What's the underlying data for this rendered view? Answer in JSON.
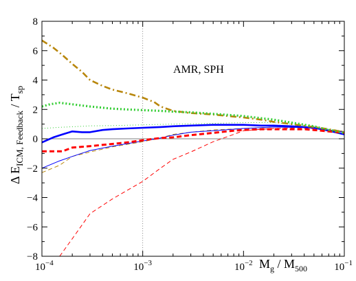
{
  "chart_data": {
    "type": "line",
    "xscale": "log",
    "xlim": [
      0.0001,
      0.1
    ],
    "ylim": [
      -8,
      8
    ],
    "x_ticks": [
      0.0001,
      0.001,
      0.01,
      0.1
    ],
    "x_tick_labels": [
      {
        "base": "10",
        "exp": "−4"
      },
      {
        "base": "10",
        "exp": "−3"
      },
      {
        "base": "10",
        "exp": "−2"
      },
      {
        "base": "10",
        "exp": "−1"
      }
    ],
    "y_ticks": [
      -8,
      -6,
      -4,
      -2,
      0,
      2,
      4,
      6,
      8
    ],
    "y_tick_labels": [
      "−8",
      "−6",
      "−4",
      "−2",
      "0",
      "2",
      "4",
      "6",
      "8"
    ],
    "xlabel": {
      "m": "M",
      "g": "g",
      "sep": " / M",
      "sub": "500"
    },
    "ylabel": {
      "pre": "Δ E",
      "sub": "ICM, Feedback",
      "post": " / T",
      "sub2": "sp"
    },
    "annotation": "AMR, SPH",
    "reference_lines": {
      "horizontal_y": 0,
      "vertical_x": 0.001
    },
    "series": [
      {
        "color": "#ff0000",
        "style": "dashed-thin",
        "x": [
          0.00015,
          0.0002,
          0.0003,
          0.0005,
          0.001,
          0.0015,
          0.002,
          0.003,
          0.005,
          0.008,
          0.01,
          0.015,
          0.02,
          0.03,
          0.05,
          0.07,
          0.1
        ],
        "y": [
          -8.0,
          -6.8,
          -5.1,
          -4.1,
          -2.9,
          -2.0,
          -1.4,
          -0.9,
          -0.2,
          0.3,
          0.55,
          0.65,
          0.7,
          0.72,
          0.7,
          0.6,
          0.5
        ]
      },
      {
        "color": "#b8860b",
        "style": "dashed-thin",
        "x": [
          0.0001,
          0.00015,
          0.0002,
          0.0003,
          0.0005,
          0.001,
          0.0015,
          0.002,
          0.003,
          0.005,
          0.01,
          0.02,
          0.05,
          0.1
        ],
        "y": [
          -2.3,
          -1.8,
          -1.2,
          -0.9,
          -0.55,
          -0.2,
          0.05,
          0.3,
          0.45,
          0.6,
          0.7,
          0.8,
          0.75,
          0.45
        ]
      },
      {
        "color": "#0000ff",
        "style": "solid-thin",
        "x": [
          0.0001,
          0.00015,
          0.0002,
          0.0003,
          0.0005,
          0.001,
          0.0015,
          0.002,
          0.003,
          0.005,
          0.01,
          0.02,
          0.05,
          0.1
        ],
        "y": [
          -2.0,
          -1.5,
          -1.2,
          -0.8,
          -0.5,
          -0.15,
          0.05,
          0.25,
          0.45,
          0.55,
          0.7,
          0.8,
          0.75,
          0.45
        ]
      },
      {
        "color": "#32cd32",
        "style": "dotted-thin",
        "x": [
          0.0001,
          0.00015,
          0.0002,
          0.0003,
          0.0005,
          0.001,
          0.002,
          0.005,
          0.01,
          0.02,
          0.05,
          0.1
        ],
        "y": [
          0.7,
          0.78,
          0.82,
          0.88,
          0.9,
          0.95,
          1.0,
          1.05,
          1.1,
          1.1,
          0.85,
          0.5
        ]
      },
      {
        "color": "#0000ff",
        "style": "solid-thick",
        "x": [
          0.0001,
          0.00013,
          0.00016,
          0.0002,
          0.00025,
          0.0003,
          0.0004,
          0.0005,
          0.0007,
          0.001,
          0.0015,
          0.002,
          0.003,
          0.005,
          0.008,
          0.01,
          0.015,
          0.02,
          0.03,
          0.04,
          0.05,
          0.07,
          0.1
        ],
        "y": [
          -0.25,
          0.1,
          0.3,
          0.5,
          0.45,
          0.45,
          0.6,
          0.65,
          0.7,
          0.75,
          0.8,
          0.85,
          0.9,
          0.95,
          0.95,
          0.95,
          0.9,
          0.9,
          0.85,
          0.8,
          0.75,
          0.55,
          0.3
        ]
      },
      {
        "color": "#ff0000",
        "style": "dashed-thick",
        "x": [
          0.0001,
          0.00013,
          0.00016,
          0.0002,
          0.0003,
          0.0005,
          0.0007,
          0.001,
          0.0015,
          0.002,
          0.003,
          0.005,
          0.008,
          0.01,
          0.015,
          0.02,
          0.03,
          0.04,
          0.05,
          0.07,
          0.1
        ],
        "y": [
          -0.85,
          -0.85,
          -0.85,
          -0.6,
          -0.5,
          -0.35,
          -0.25,
          -0.1,
          0.05,
          0.1,
          0.25,
          0.4,
          0.55,
          0.6,
          0.65,
          0.65,
          0.65,
          0.65,
          0.6,
          0.5,
          0.4
        ]
      },
      {
        "color": "#b8860b",
        "style": "dashdot-thick",
        "x": [
          0.0001,
          0.00013,
          0.00016,
          0.0002,
          0.00025,
          0.0003,
          0.0004,
          0.0005,
          0.0007,
          0.001,
          0.0013,
          0.0015,
          0.002,
          0.003,
          0.004,
          0.005,
          0.007,
          0.01,
          0.015,
          0.02,
          0.03,
          0.05,
          0.07,
          0.1
        ],
        "y": [
          6.7,
          6.2,
          5.7,
          5.1,
          4.55,
          4.0,
          3.6,
          3.35,
          3.1,
          2.8,
          2.5,
          2.2,
          1.9,
          1.75,
          1.7,
          1.65,
          1.55,
          1.45,
          1.3,
          1.15,
          1.0,
          0.8,
          0.65,
          0.45
        ]
      },
      {
        "color": "#32cd32",
        "style": "dotted-thick",
        "x": [
          0.0001,
          0.00012,
          0.00015,
          0.0002,
          0.0003,
          0.0005,
          0.0007,
          0.001,
          0.0015,
          0.002,
          0.003,
          0.005,
          0.01,
          0.015,
          0.02,
          0.03,
          0.05,
          0.07,
          0.1
        ],
        "y": [
          2.2,
          2.35,
          2.45,
          2.35,
          2.2,
          2.05,
          2.0,
          1.95,
          1.9,
          1.85,
          1.8,
          1.7,
          1.55,
          1.4,
          1.3,
          1.1,
          0.85,
          0.6,
          0.4
        ]
      }
    ]
  }
}
